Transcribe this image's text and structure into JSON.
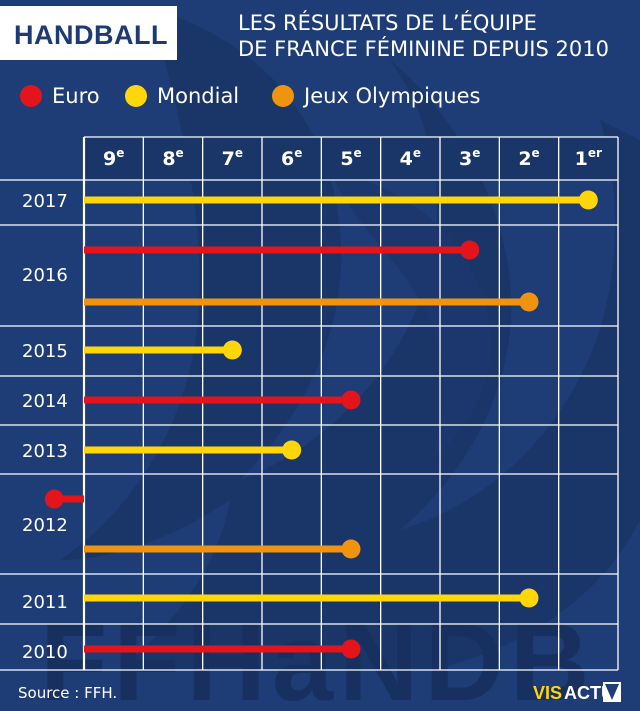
{
  "header": {
    "tag": "HANDBALL",
    "subtitle_line1": "LES RÉSULTATS DE L’ÉQUIPE",
    "subtitle_line2": "DE FRANCE FÉMININE DEPUIS 2010"
  },
  "legend": [
    {
      "label": "Euro",
      "color": "#e3141b"
    },
    {
      "label": "Mondial",
      "color": "#ffd60a"
    },
    {
      "label": "Jeux Olympiques",
      "color": "#f0930f"
    }
  ],
  "footer": {
    "source": "Source : FFH.",
    "logo_left": "VIS",
    "logo_right": "ACTU"
  },
  "chart_data": {
    "type": "dot-bar",
    "columns": [
      {
        "num": "9",
        "sup": "e",
        "place": 9
      },
      {
        "num": "8",
        "sup": "e",
        "place": 8
      },
      {
        "num": "7",
        "sup": "e",
        "place": 7
      },
      {
        "num": "6",
        "sup": "e",
        "place": 6
      },
      {
        "num": "5",
        "sup": "e",
        "place": 5
      },
      {
        "num": "4",
        "sup": "e",
        "place": 4
      },
      {
        "num": "3",
        "sup": "e",
        "place": 3
      },
      {
        "num": "2",
        "sup": "e",
        "place": 2
      },
      {
        "num": "1",
        "sup": "er",
        "place": 1
      }
    ],
    "years": [
      "2017",
      "2016",
      "2015",
      "2014",
      "2013",
      "2012",
      "2011",
      "2010"
    ],
    "results": [
      {
        "year": "2017",
        "competition": "Mondial",
        "place": 1
      },
      {
        "year": "2016",
        "competition": "Euro",
        "place": 3
      },
      {
        "year": "2016",
        "competition": "Jeux Olympiques",
        "place": 2
      },
      {
        "year": "2015",
        "competition": "Mondial",
        "place": 7
      },
      {
        "year": "2014",
        "competition": "Euro",
        "place": 5
      },
      {
        "year": "2013",
        "competition": "Mondial",
        "place": 6
      },
      {
        "year": "2012",
        "competition": "Euro",
        "place": 10
      },
      {
        "year": "2012",
        "competition": "Jeux Olympiques",
        "place": 5
      },
      {
        "year": "2011",
        "competition": "Mondial",
        "place": 2
      },
      {
        "year": "2010",
        "competition": "Euro",
        "place": 5
      }
    ]
  }
}
